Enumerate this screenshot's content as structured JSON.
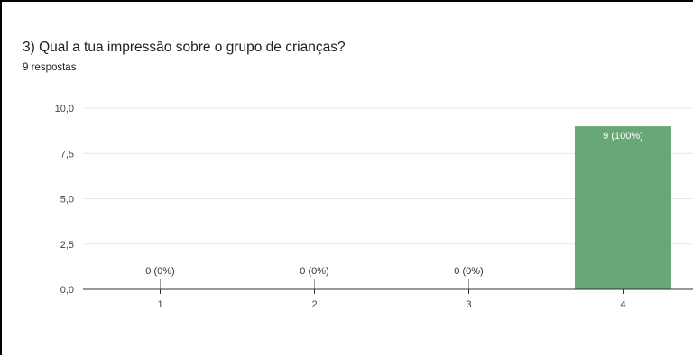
{
  "question": {
    "title": "3) Qual a tua impressão sobre o grupo de crianças?",
    "responses": "9 respostas"
  },
  "colors": {
    "bar": "#67a876",
    "grid": "#e6e6e6",
    "axis": "#333333",
    "label_inside": "#ffffff",
    "label_outside": "#333333"
  },
  "chart_data": {
    "type": "bar",
    "categories": [
      "1",
      "2",
      "3",
      "4"
    ],
    "values": [
      0,
      0,
      0,
      9
    ],
    "data_labels": [
      "0 (0%)",
      "0 (0%)",
      "0 (0%)",
      "9 (100%)"
    ],
    "y_ticks": [
      "0,0",
      "2,5",
      "5,0",
      "7,5",
      "10,0"
    ],
    "y_tick_values": [
      0,
      2.5,
      5,
      7.5,
      10
    ],
    "ylim": [
      0,
      10
    ],
    "grid": true,
    "legend": "none"
  }
}
